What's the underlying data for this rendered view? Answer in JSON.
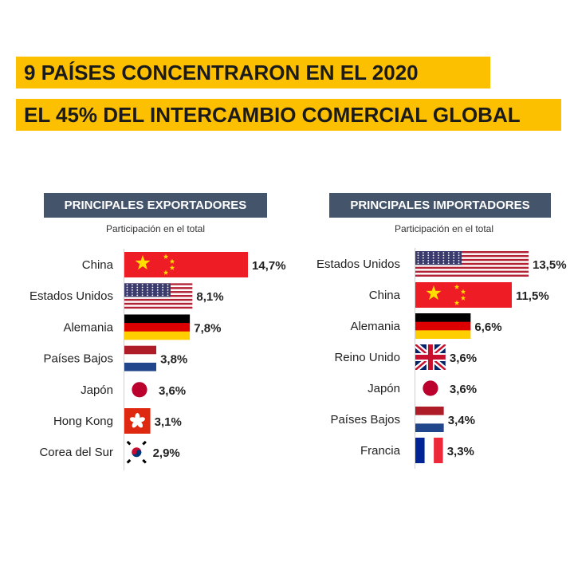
{
  "header": {
    "line1": "9 PAÍSES CONCENTRARON EN EL 2020",
    "line2": "EL 45% DEL INTERCAMBIO COMERCIAL GLOBAL"
  },
  "colors": {
    "title_bg": "#fcc000",
    "panel_header_bg": "#44546a"
  },
  "chart_data": [
    {
      "type": "bar",
      "orientation": "horizontal",
      "title": "PRINCIPALES EXPORTADORES",
      "subtitle": "Participación en el total",
      "categories": [
        "China",
        "Estados Unidos",
        "Alemania",
        "Países Bajos",
        "Japón",
        "Hong Kong",
        "Corea del Sur"
      ],
      "values": [
        14.7,
        8.1,
        7.8,
        3.8,
        3.6,
        3.1,
        2.9
      ],
      "value_labels": [
        "14,7%",
        "8,1%",
        "7,8%",
        "3,8%",
        "3,6%",
        "3,1%",
        "2,9%"
      ],
      "flags": [
        "china",
        "usa",
        "germany",
        "netherlands",
        "japan",
        "hongkong",
        "korea"
      ],
      "unit": "%"
    },
    {
      "type": "bar",
      "orientation": "horizontal",
      "title": "PRINCIPALES IMPORTADORES",
      "subtitle": "Participación en el total",
      "categories": [
        "Estados Unidos",
        "China",
        "Alemania",
        "Reino Unido",
        "Japón",
        "Países Bajos",
        "Francia"
      ],
      "values": [
        13.5,
        11.5,
        6.6,
        3.6,
        3.6,
        3.4,
        3.3
      ],
      "value_labels": [
        "13,5%",
        "11,5%",
        "6,6%",
        "3,6%",
        "3,6%",
        "3,4%",
        "3,3%"
      ],
      "flags": [
        "usa",
        "china",
        "germany",
        "uk",
        "japan",
        "netherlands",
        "france"
      ],
      "unit": "%"
    }
  ]
}
